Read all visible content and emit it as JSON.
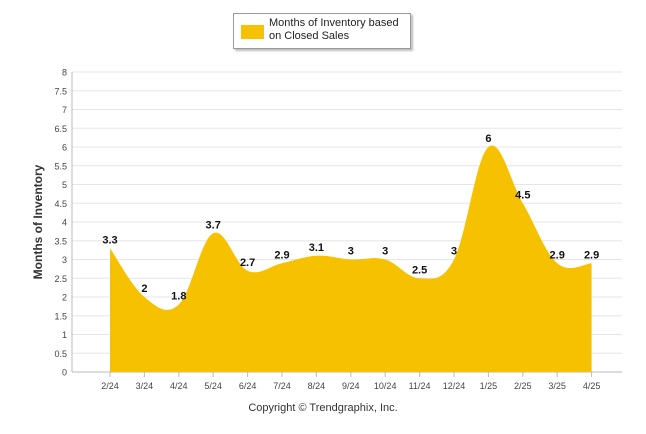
{
  "chart_data": {
    "type": "area",
    "categories": [
      "2/24",
      "3/24",
      "4/24",
      "5/24",
      "6/24",
      "7/24",
      "8/24",
      "9/24",
      "10/24",
      "11/24",
      "12/24",
      "1/25",
      "2/25",
      "3/25",
      "4/25"
    ],
    "series": [
      {
        "name": "Months of Inventory based on Closed Sales",
        "values": [
          3.3,
          2,
          1.8,
          3.7,
          2.7,
          2.9,
          3.1,
          3,
          3,
          2.5,
          3,
          6,
          4.5,
          2.9,
          2.9
        ],
        "color": "#f6c100"
      }
    ],
    "ylabel": "Months of Inventory",
    "ylim": [
      0,
      8
    ],
    "yticks": [
      "0",
      "0.5",
      "1",
      "1.5",
      "2",
      "2.5",
      "3",
      "3.5",
      "4",
      "4.5",
      "5",
      "5.5",
      "6",
      "6.5",
      "7",
      "7.5",
      "8"
    ],
    "data_labels": [
      "3.3",
      "2",
      "1.8",
      "3.7",
      "2.7",
      "2.9",
      "3.1",
      "3",
      "3",
      "2.5",
      "3",
      "6",
      "4.5",
      "2.9",
      "2.9"
    ],
    "legend": "top",
    "grid": true
  },
  "legend": {
    "line1": "Months of Inventory based",
    "line2": "on Closed Sales"
  },
  "footer": {
    "copyright": "Copyright © Trendgraphix, Inc."
  }
}
